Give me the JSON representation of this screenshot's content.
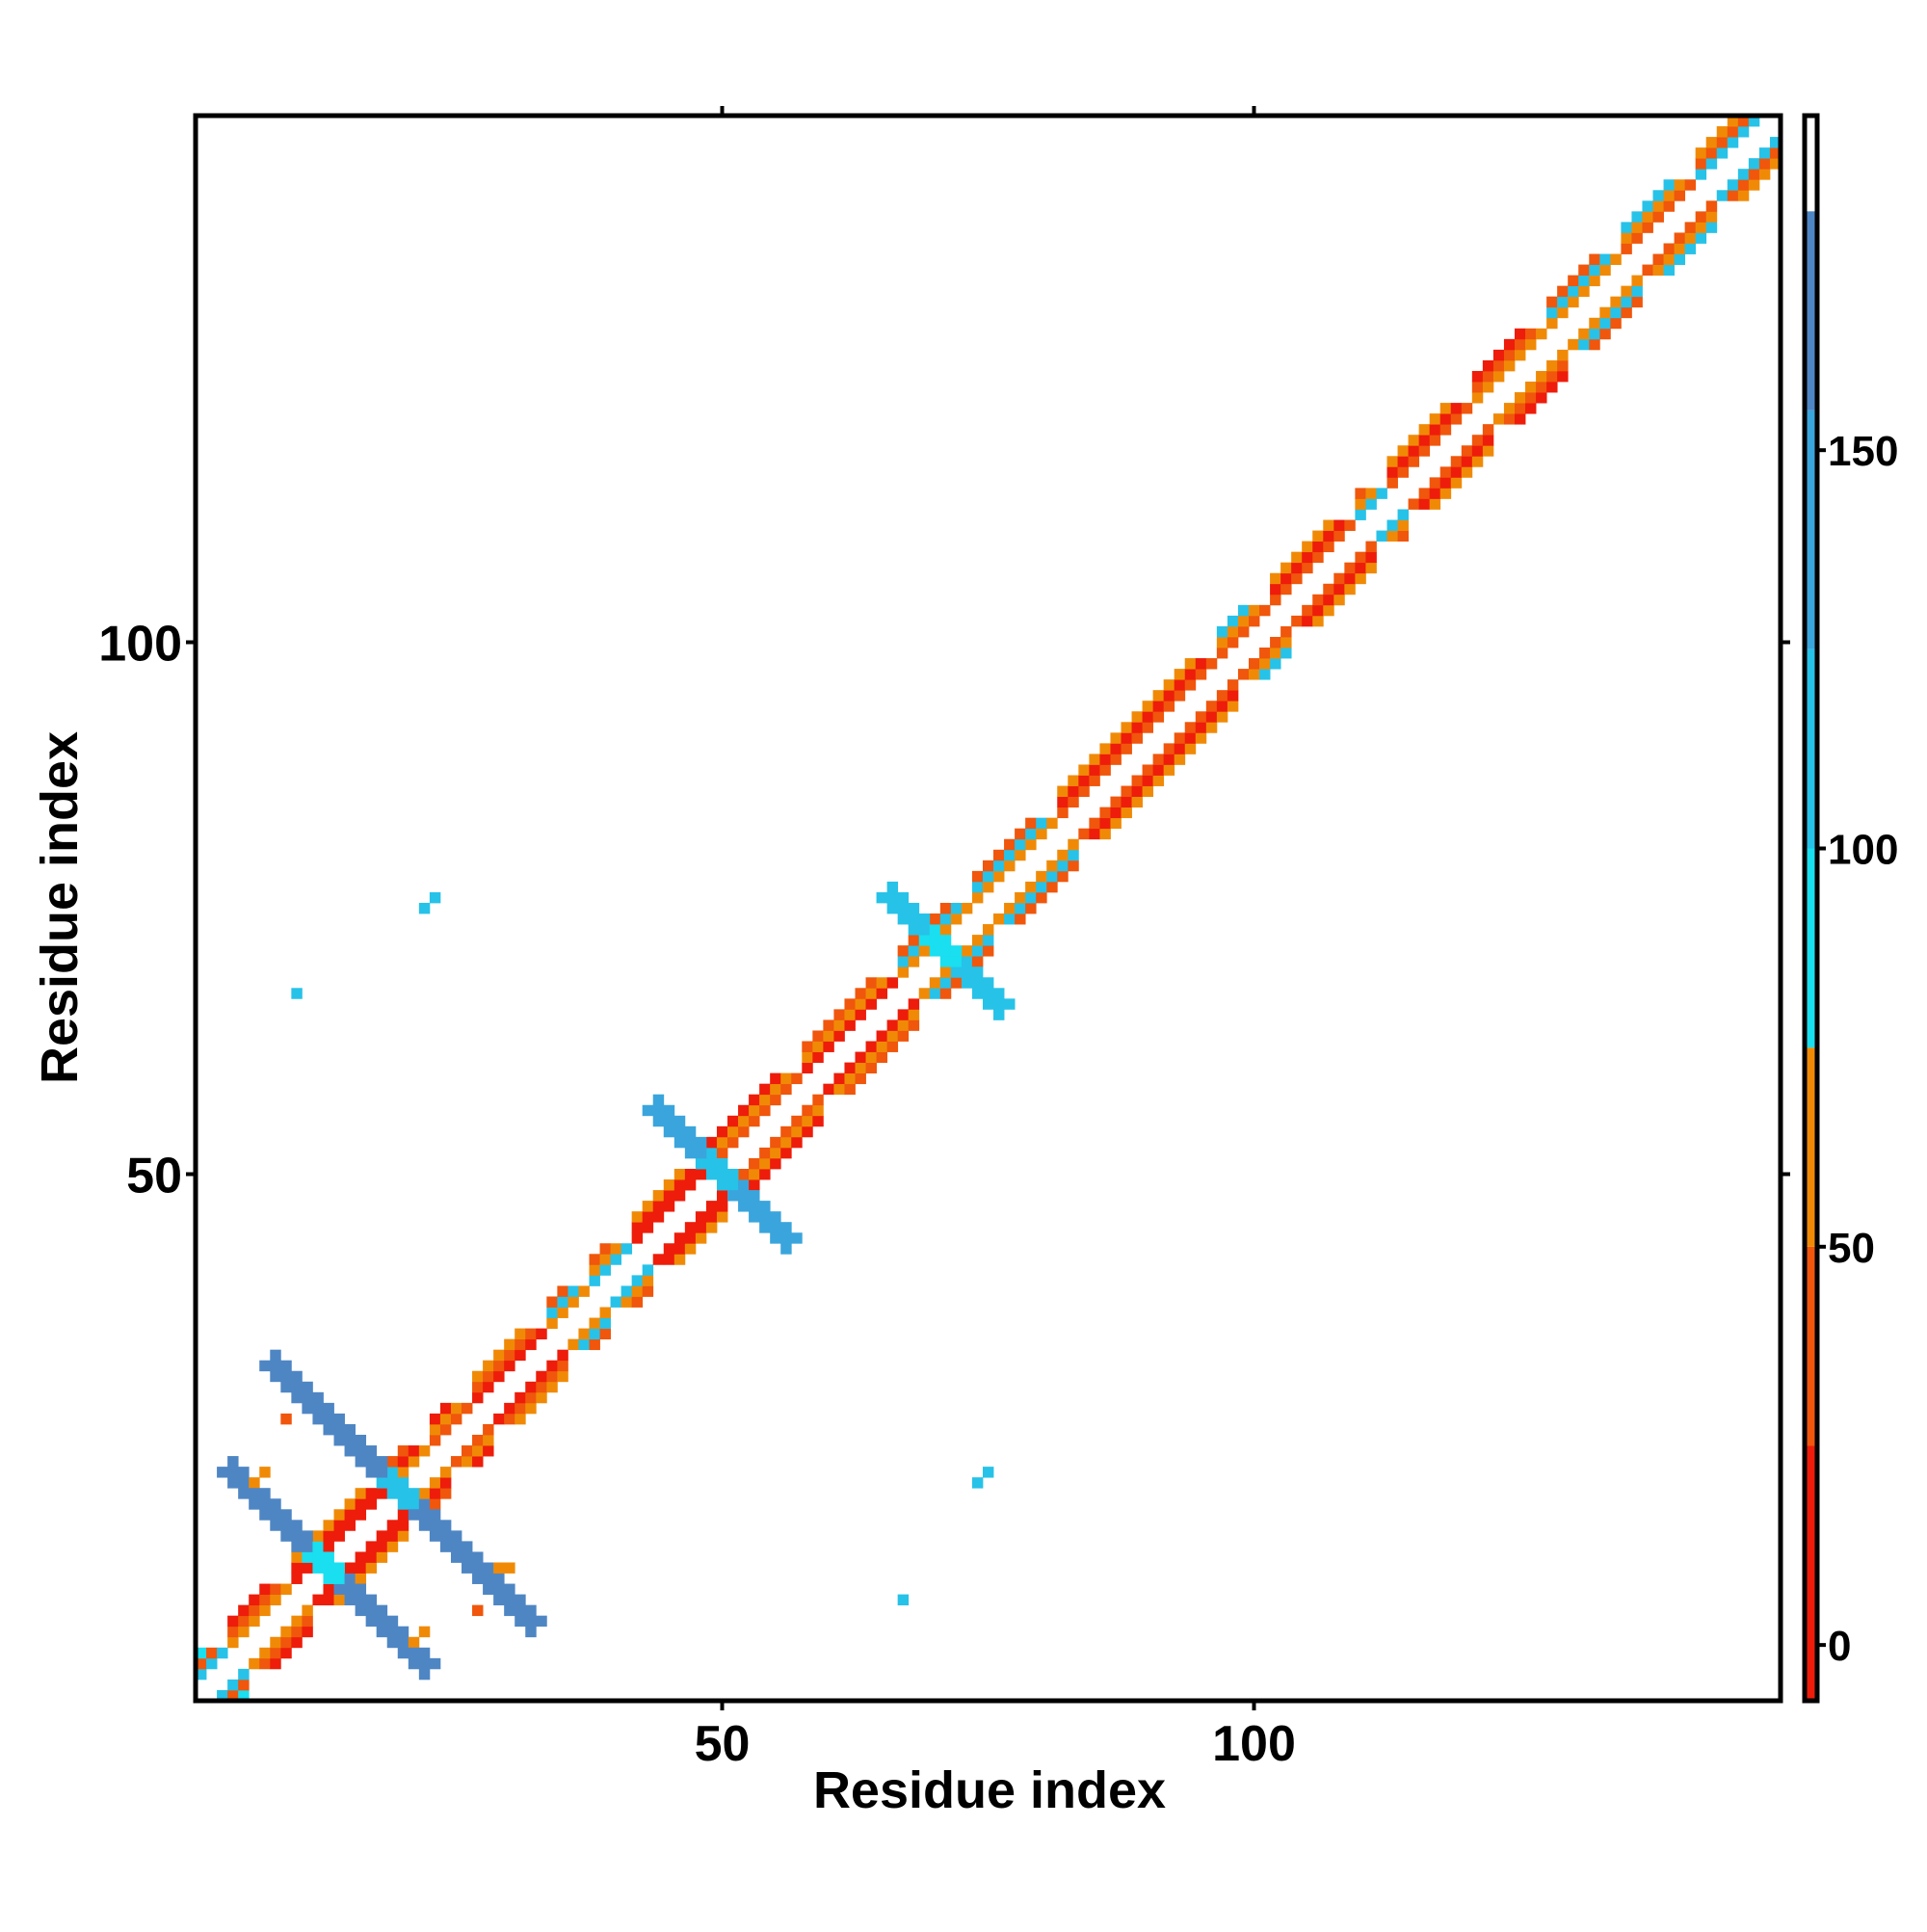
{
  "chart_data": {
    "type": "heatmap",
    "title": "",
    "xlabel": "Residue index",
    "ylabel": "Residue index",
    "xlim": [
      0.5,
      149.5
    ],
    "ylim": [
      0.5,
      149.5
    ],
    "x_ticks": [
      50,
      100
    ],
    "y_ticks": [
      50,
      100
    ],
    "x_tick_labels": [
      "50",
      "100"
    ],
    "y_tick_labels": [
      "50",
      "100"
    ],
    "colorbar": {
      "ticks": [
        0,
        50,
        100,
        150
      ],
      "tick_labels": [
        "0",
        "50",
        "100",
        "150"
      ],
      "range": [
        -7,
        192
      ],
      "bands": [
        {
          "from": -7,
          "to": 25,
          "color": "#ee1c0a"
        },
        {
          "from": 25,
          "to": 50,
          "color": "#f0560c"
        },
        {
          "from": 50,
          "to": 75,
          "color": "#f08a06"
        },
        {
          "from": 75,
          "to": 100,
          "color": "#19dff0"
        },
        {
          "from": 100,
          "to": 125,
          "color": "#27c2e8"
        },
        {
          "from": 125,
          "to": 155,
          "color": "#3aa5dc"
        },
        {
          "from": 155,
          "to": 180,
          "color": "#4e86c4"
        },
        {
          "from": 180,
          "to": 192,
          "color": "#ffffff"
        }
      ]
    },
    "diagonal_segments": [
      {
        "from": 1,
        "to": 4,
        "near": [
          100,
          40,
          75
        ]
      },
      {
        "from": 4,
        "to": 10,
        "near": [
          60,
          40,
          20
        ]
      },
      {
        "from": 10,
        "to": 19,
        "near": [
          20,
          10,
          60
        ]
      },
      {
        "from": 19,
        "to": 23,
        "near": [
          60,
          20,
          40
        ]
      },
      {
        "from": 23,
        "to": 27,
        "near": [
          40,
          60,
          20
        ]
      },
      {
        "from": 27,
        "to": 34,
        "near": [
          20,
          40,
          60
        ]
      },
      {
        "from": 34,
        "to": 38,
        "near": [
          60,
          100,
          40
        ]
      },
      {
        "from": 38,
        "to": 42,
        "near": [
          100,
          60,
          40
        ]
      },
      {
        "from": 42,
        "to": 49,
        "near": [
          20,
          10,
          60
        ]
      },
      {
        "from": 49,
        "to": 58,
        "near": [
          40,
          60,
          20
        ]
      },
      {
        "from": 58,
        "to": 67,
        "near": [
          20,
          60,
          40
        ]
      },
      {
        "from": 67,
        "to": 74,
        "near": [
          60,
          100,
          40
        ]
      },
      {
        "from": 74,
        "to": 82,
        "near": [
          60,
          100,
          40
        ]
      },
      {
        "from": 82,
        "to": 97,
        "near": [
          40,
          20,
          60
        ]
      },
      {
        "from": 97,
        "to": 102,
        "near": [
          40,
          60,
          100
        ]
      },
      {
        "from": 102,
        "to": 110,
        "near": [
          40,
          20,
          60
        ]
      },
      {
        "from": 110,
        "to": 113,
        "near": [
          100,
          60,
          40
        ]
      },
      {
        "from": 113,
        "to": 121,
        "near": [
          40,
          20,
          60
        ]
      },
      {
        "from": 121,
        "to": 128,
        "near": [
          60,
          40,
          20
        ]
      },
      {
        "from": 128,
        "to": 135,
        "near": [
          60,
          100,
          40
        ]
      },
      {
        "from": 135,
        "to": 142,
        "near": [
          40,
          60,
          100
        ]
      },
      {
        "from": 142,
        "to": 149,
        "near": [
          100,
          40,
          60
        ]
      }
    ],
    "cross_contacts": [
      {
        "center": [
          20,
          20
        ],
        "half_length": 12,
        "value": 160,
        "center_value": 105
      },
      {
        "center": [
          13,
          13
        ],
        "half_length": 9,
        "value": 160,
        "center_value": 90
      },
      {
        "center": [
          50,
          50
        ],
        "half_length": 6,
        "value": 150,
        "center_value": 110
      },
      {
        "center": [
          71,
          71
        ],
        "half_length": 5,
        "value": 115,
        "center_value": 90
      }
    ],
    "isolated_contacts": [
      {
        "x": 22,
        "y": 75,
        "value": 110
      },
      {
        "x": 23,
        "y": 76,
        "value": 105
      },
      {
        "x": 10,
        "y": 67,
        "value": 110
      },
      {
        "x": 74,
        "y": 21,
        "value": 110
      },
      {
        "x": 75,
        "y": 22,
        "value": 105
      },
      {
        "x": 67,
        "y": 10,
        "value": 110
      },
      {
        "x": 9,
        "y": 27,
        "value": 40
      },
      {
        "x": 27,
        "y": 9,
        "value": 40
      },
      {
        "x": 6,
        "y": 21,
        "value": 60
      },
      {
        "x": 7,
        "y": 22,
        "value": 60
      },
      {
        "x": 21,
        "y": 6,
        "value": 60
      },
      {
        "x": 22,
        "y": 7,
        "value": 60
      },
      {
        "x": 30,
        "y": 13,
        "value": 60
      },
      {
        "x": 29,
        "y": 13,
        "value": 55
      }
    ]
  }
}
